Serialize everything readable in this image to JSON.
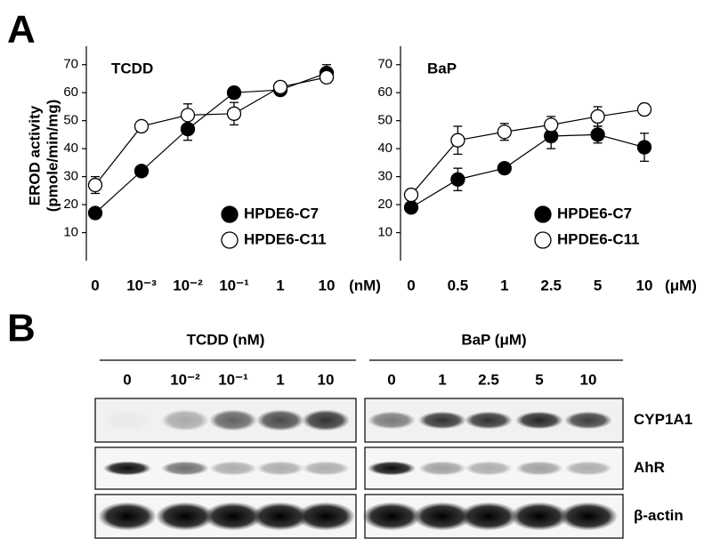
{
  "panel_a": {
    "label": "A"
  },
  "chart_data": [
    {
      "type": "line",
      "title": "TCDD",
      "categories": [
        "0",
        "10⁻³",
        "10⁻²",
        "10⁻¹",
        "1",
        "10"
      ],
      "x_unit": "(nM)",
      "ylabel": [
        "EROD activity",
        "(pmole/min/mg)"
      ],
      "ylim": [
        0,
        75
      ],
      "yticks": [
        10,
        20,
        30,
        40,
        50,
        60,
        70
      ],
      "legend": "lower right",
      "series": [
        {
          "name": "HPDE6-C7",
          "color": "#000000",
          "marker_fill": "#000000",
          "values": [
            17,
            32,
            47,
            60,
            61,
            67
          ],
          "errors": [
            1,
            1,
            4,
            2,
            1.5,
            3
          ]
        },
        {
          "name": "HPDE6-C11",
          "color": "#000000",
          "marker_fill": "#ffffff",
          "values": [
            27,
            48,
            52,
            52.5,
            62,
            65.5
          ],
          "errors": [
            3,
            1,
            4,
            4,
            2,
            2
          ]
        }
      ]
    },
    {
      "type": "line",
      "title": "BaP",
      "categories": [
        "0",
        "0.5",
        "1",
        "2.5",
        "5",
        "10"
      ],
      "x_unit": "(μM)",
      "ylim": [
        0,
        75
      ],
      "yticks": [
        10,
        20,
        30,
        40,
        50,
        60,
        70
      ],
      "legend": "lower right",
      "series": [
        {
          "name": "HPDE6-C7",
          "color": "#000000",
          "marker_fill": "#000000",
          "values": [
            19,
            29,
            33,
            44.5,
            45,
            40.5
          ],
          "errors": [
            1.5,
            4,
            1.5,
            4.5,
            3,
            5
          ]
        },
        {
          "name": "HPDE6-C11",
          "color": "#000000",
          "marker_fill": "#ffffff",
          "values": [
            23.5,
            43,
            46,
            48.5,
            51.5,
            54
          ],
          "errors": [
            2,
            5,
            3,
            3,
            3.5,
            2
          ]
        }
      ]
    }
  ],
  "panel_b": {
    "label": "B",
    "groups": [
      {
        "title": "TCDD (nM)",
        "lanes": [
          "0",
          "10⁻²",
          "10⁻¹",
          "1",
          "10"
        ]
      },
      {
        "title": "BaP (μM)",
        "lanes": [
          "0",
          "1",
          "2.5",
          "5",
          "10"
        ]
      }
    ],
    "rows": [
      "CYP1A1",
      "AhR",
      "β-actin"
    ]
  }
}
